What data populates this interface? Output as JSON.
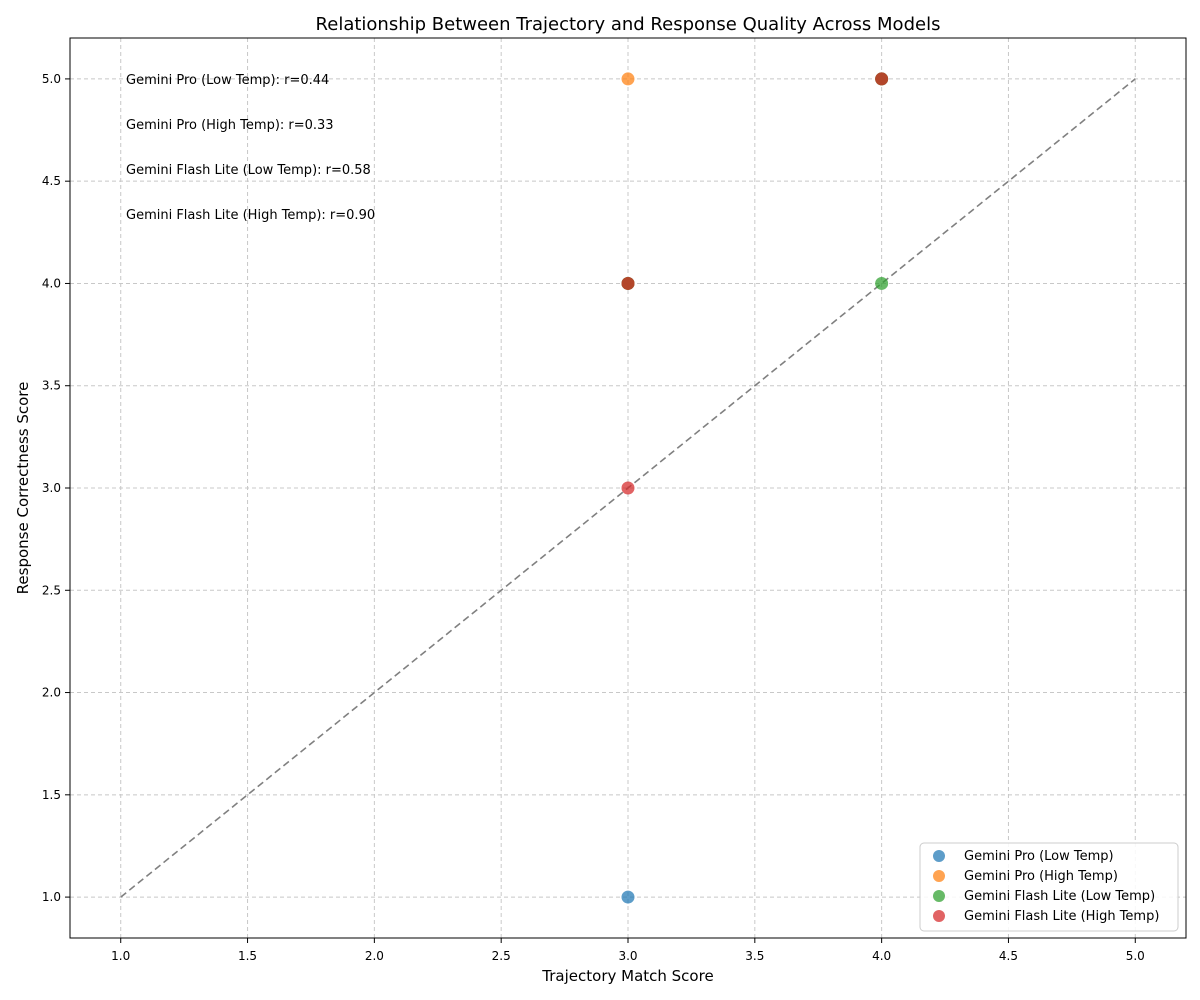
{
  "chart_data": {
    "type": "scatter",
    "title": "Relationship Between Trajectory and Response Quality Across Models",
    "xlabel": "Trajectory Match Score",
    "ylabel": "Response Correctness Score",
    "xlim": [
      0.8,
      5.2
    ],
    "ylim": [
      0.8,
      5.2
    ],
    "xticks": [
      "1.0",
      "1.5",
      "2.0",
      "2.5",
      "3.0",
      "3.5",
      "4.0",
      "4.5",
      "5.0"
    ],
    "yticks": [
      "1.0",
      "1.5",
      "2.0",
      "2.5",
      "3.0",
      "3.5",
      "4.0",
      "4.5",
      "5.0"
    ],
    "grid": true,
    "legend_position": "lower-right",
    "reference_line": {
      "style": "dashed",
      "color": "#808080",
      "from": [
        1,
        1
      ],
      "to": [
        5,
        5
      ]
    },
    "series": [
      {
        "name": "Gemini Pro (Low Temp)",
        "color": "#1f77b4",
        "points": [
          [
            3,
            1
          ],
          [
            3,
            4
          ],
          [
            4,
            5
          ]
        ]
      },
      {
        "name": "Gemini Pro (High Temp)",
        "color": "#ff7f0e",
        "points": [
          [
            3,
            5
          ],
          [
            3,
            4
          ],
          [
            4,
            5
          ]
        ]
      },
      {
        "name": "Gemini Flash Lite (Low Temp)",
        "color": "#2ca02c",
        "points": [
          [
            4,
            4
          ],
          [
            3,
            4
          ],
          [
            4,
            5
          ]
        ]
      },
      {
        "name": "Gemini Flash Lite (High Temp)",
        "color": "#d62728",
        "points": [
          [
            3,
            3
          ],
          [
            3,
            4
          ],
          [
            4,
            5
          ]
        ]
      }
    ],
    "annotations": [
      "Gemini Pro (Low Temp): r=0.44",
      "Gemini Pro (High Temp): r=0.33",
      "Gemini Flash Lite (Low Temp): r=0.58",
      "Gemini Flash Lite (High Temp): r=0.90"
    ]
  }
}
